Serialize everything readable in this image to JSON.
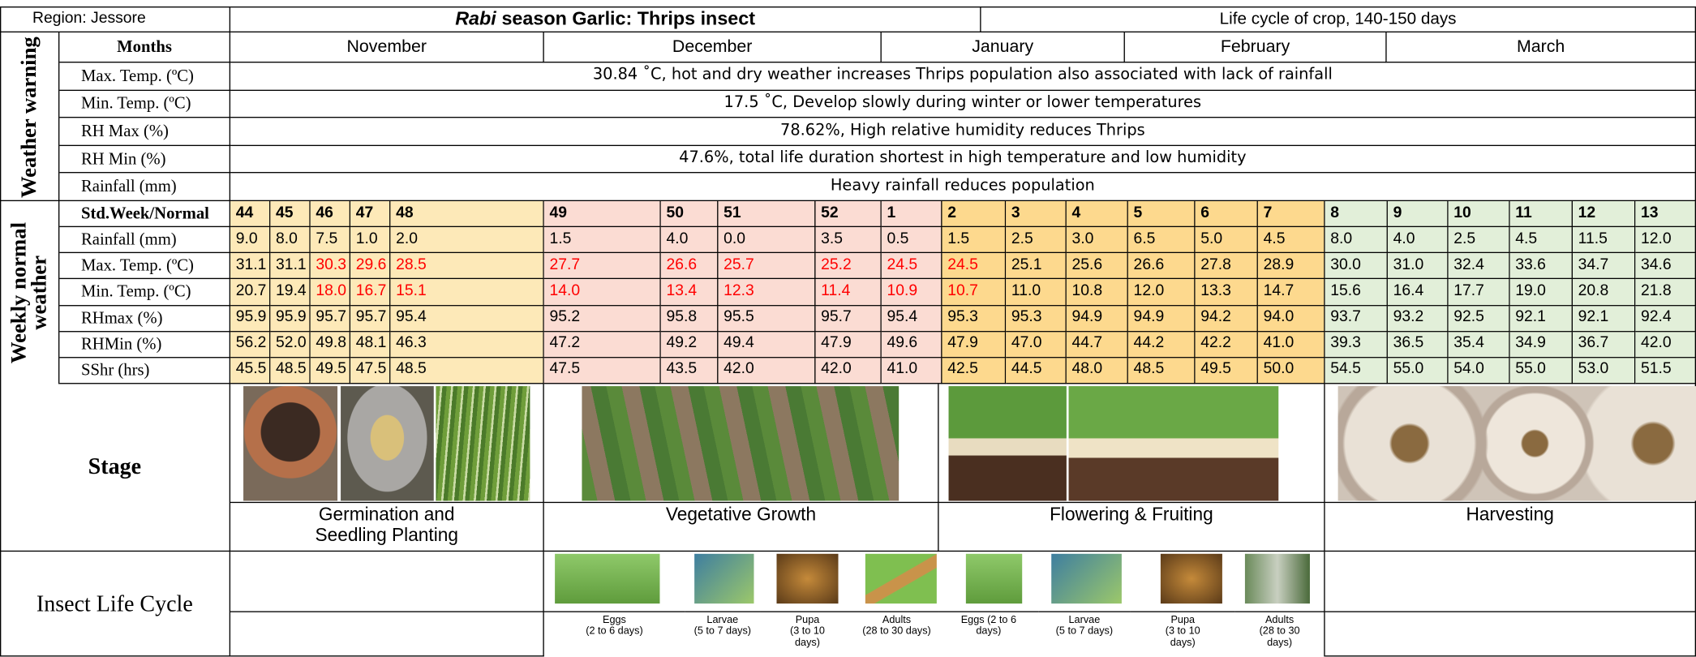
{
  "header": {
    "region": "Region: Jessore",
    "title_italic": "Rabi",
    "title": "season Garlic: Thrips insect",
    "life_cycle": "Life cycle of crop, 140-150 days"
  },
  "months": {
    "label": "Months",
    "names": [
      "November",
      "December",
      "January",
      "February",
      "March"
    ]
  },
  "weather_warning": {
    "group": "Weather warning",
    "rows": [
      {
        "label": "Max. Temp. (ºC)",
        "text": "30.84 ˚C, hot and dry weather increases Thrips population also associated with lack of rainfall"
      },
      {
        "label": "Min. Temp. (ºC)",
        "text": "17.5 ˚C, Develop slowly during winter or lower temperatures"
      },
      {
        "label": "RH Max (%)",
        "text": "78.62%, High relative humidity reduces Thrips"
      },
      {
        "label": "RH Min (%)",
        "text": "47.6%, total life duration shortest in high temperature and low humidity"
      },
      {
        "label": "Rainfall (mm)",
        "text": "Heavy rainfall reduces population"
      }
    ]
  },
  "weekly": {
    "group": "Weekly normal weather",
    "header_label": "Std.Week/Normal",
    "weeks": [
      "44",
      "45",
      "46",
      "47",
      "48",
      "49",
      "50",
      "51",
      "52",
      "1",
      "2",
      "3",
      "4",
      "5",
      "6",
      "7",
      "8",
      "9",
      "10",
      "11",
      "12",
      "13"
    ],
    "highlight_color": "#ff0000",
    "rows": [
      {
        "label": "Rainfall (mm)",
        "values": [
          "9.0",
          "8.0",
          "7.5",
          "1.0",
          "2.0",
          "1.5",
          "4.0",
          "0.0",
          "3.5",
          "0.5",
          "1.5",
          "2.5",
          "3.0",
          "6.5",
          "5.0",
          "4.5",
          "8.0",
          "4.0",
          "2.5",
          "4.5",
          "11.5",
          "12.0"
        ],
        "highlighted": [
          false,
          false,
          false,
          false,
          false,
          false,
          false,
          false,
          false,
          false,
          false,
          false,
          false,
          false,
          false,
          false,
          false,
          false,
          false,
          false,
          false,
          false
        ]
      },
      {
        "label": "Max. Temp. (ºC)",
        "values": [
          "31.1",
          "31.1",
          "30.3",
          "29.6",
          "28.5",
          "27.7",
          "26.6",
          "25.7",
          "25.2",
          "24.5",
          "24.5",
          "25.1",
          "25.6",
          "26.6",
          "27.8",
          "28.9",
          "30.0",
          "31.0",
          "32.4",
          "33.6",
          "34.7",
          "34.6"
        ],
        "highlighted": [
          false,
          false,
          true,
          true,
          true,
          true,
          true,
          true,
          true,
          true,
          true,
          false,
          false,
          false,
          false,
          false,
          false,
          false,
          false,
          false,
          false,
          false
        ]
      },
      {
        "label": "Min. Temp. (ºC)",
        "values": [
          "20.7",
          "19.4",
          "18.0",
          "16.7",
          "15.1",
          "14.0",
          "13.4",
          "12.3",
          "11.4",
          "10.9",
          "10.7",
          "11.0",
          "10.8",
          "12.0",
          "13.3",
          "14.7",
          "15.6",
          "16.4",
          "17.7",
          "19.0",
          "20.8",
          "21.8"
        ],
        "highlighted": [
          false,
          false,
          true,
          true,
          true,
          true,
          true,
          true,
          true,
          true,
          true,
          false,
          false,
          false,
          false,
          false,
          false,
          false,
          false,
          false,
          false,
          false
        ]
      },
      {
        "label": "RHmax (%)",
        "values": [
          "95.9",
          "95.9",
          "95.7",
          "95.7",
          "95.4",
          "95.2",
          "95.8",
          "95.5",
          "95.7",
          "95.4",
          "95.3",
          "95.3",
          "94.9",
          "94.9",
          "94.2",
          "94.0",
          "93.7",
          "93.2",
          "92.5",
          "92.1",
          "92.1",
          "92.4"
        ],
        "highlighted": [
          false,
          false,
          false,
          false,
          false,
          false,
          false,
          false,
          false,
          false,
          false,
          false,
          false,
          false,
          false,
          false,
          false,
          false,
          false,
          false,
          false,
          false
        ]
      },
      {
        "label": "RHMin (%)",
        "values": [
          "56.2",
          "52.0",
          "49.8",
          "48.1",
          "46.3",
          "47.2",
          "49.2",
          "49.4",
          "47.9",
          "49.6",
          "47.9",
          "47.0",
          "44.7",
          "44.2",
          "42.2",
          "41.0",
          "39.3",
          "36.5",
          "35.4",
          "34.9",
          "36.7",
          "42.0"
        ],
        "highlighted": [
          false,
          false,
          false,
          false,
          false,
          false,
          false,
          false,
          false,
          false,
          false,
          false,
          false,
          false,
          false,
          false,
          false,
          false,
          false,
          false,
          false,
          false
        ]
      },
      {
        "label": "SShr (hrs)",
        "values": [
          "45.5",
          "48.5",
          "49.5",
          "47.5",
          "48.5",
          "47.5",
          "43.5",
          "42.0",
          "42.0",
          "41.0",
          "42.5",
          "44.5",
          "48.0",
          "48.5",
          "49.5",
          "50.0",
          "54.5",
          "55.0",
          "54.0",
          "55.0",
          "53.0",
          "51.5"
        ],
        "highlighted": [
          false,
          false,
          false,
          false,
          false,
          false,
          false,
          false,
          false,
          false,
          false,
          false,
          false,
          false,
          false,
          false,
          false,
          false,
          false,
          false,
          false,
          false
        ]
      }
    ]
  },
  "stages": {
    "label": "Stage",
    "names": [
      "Germination and\nSeedling Planting",
      "Vegetative Growth",
      "Flowering & Fruiting",
      "Harvesting"
    ]
  },
  "insect": {
    "label": "Insect Life Cycle",
    "stages": [
      "Eggs\n(2 to 6 days)",
      "Larvae\n(5 to 7 days)",
      "Pupa\n(3 to 10\ndays)",
      "Adults\n(28 to 30 days)",
      "Eggs (2 to 6\ndays)",
      "Larvae\n(5 to 7 days)",
      "Pupa\n(3 to 10\ndays)",
      "Adults\n(28 to 30\ndays)"
    ]
  }
}
